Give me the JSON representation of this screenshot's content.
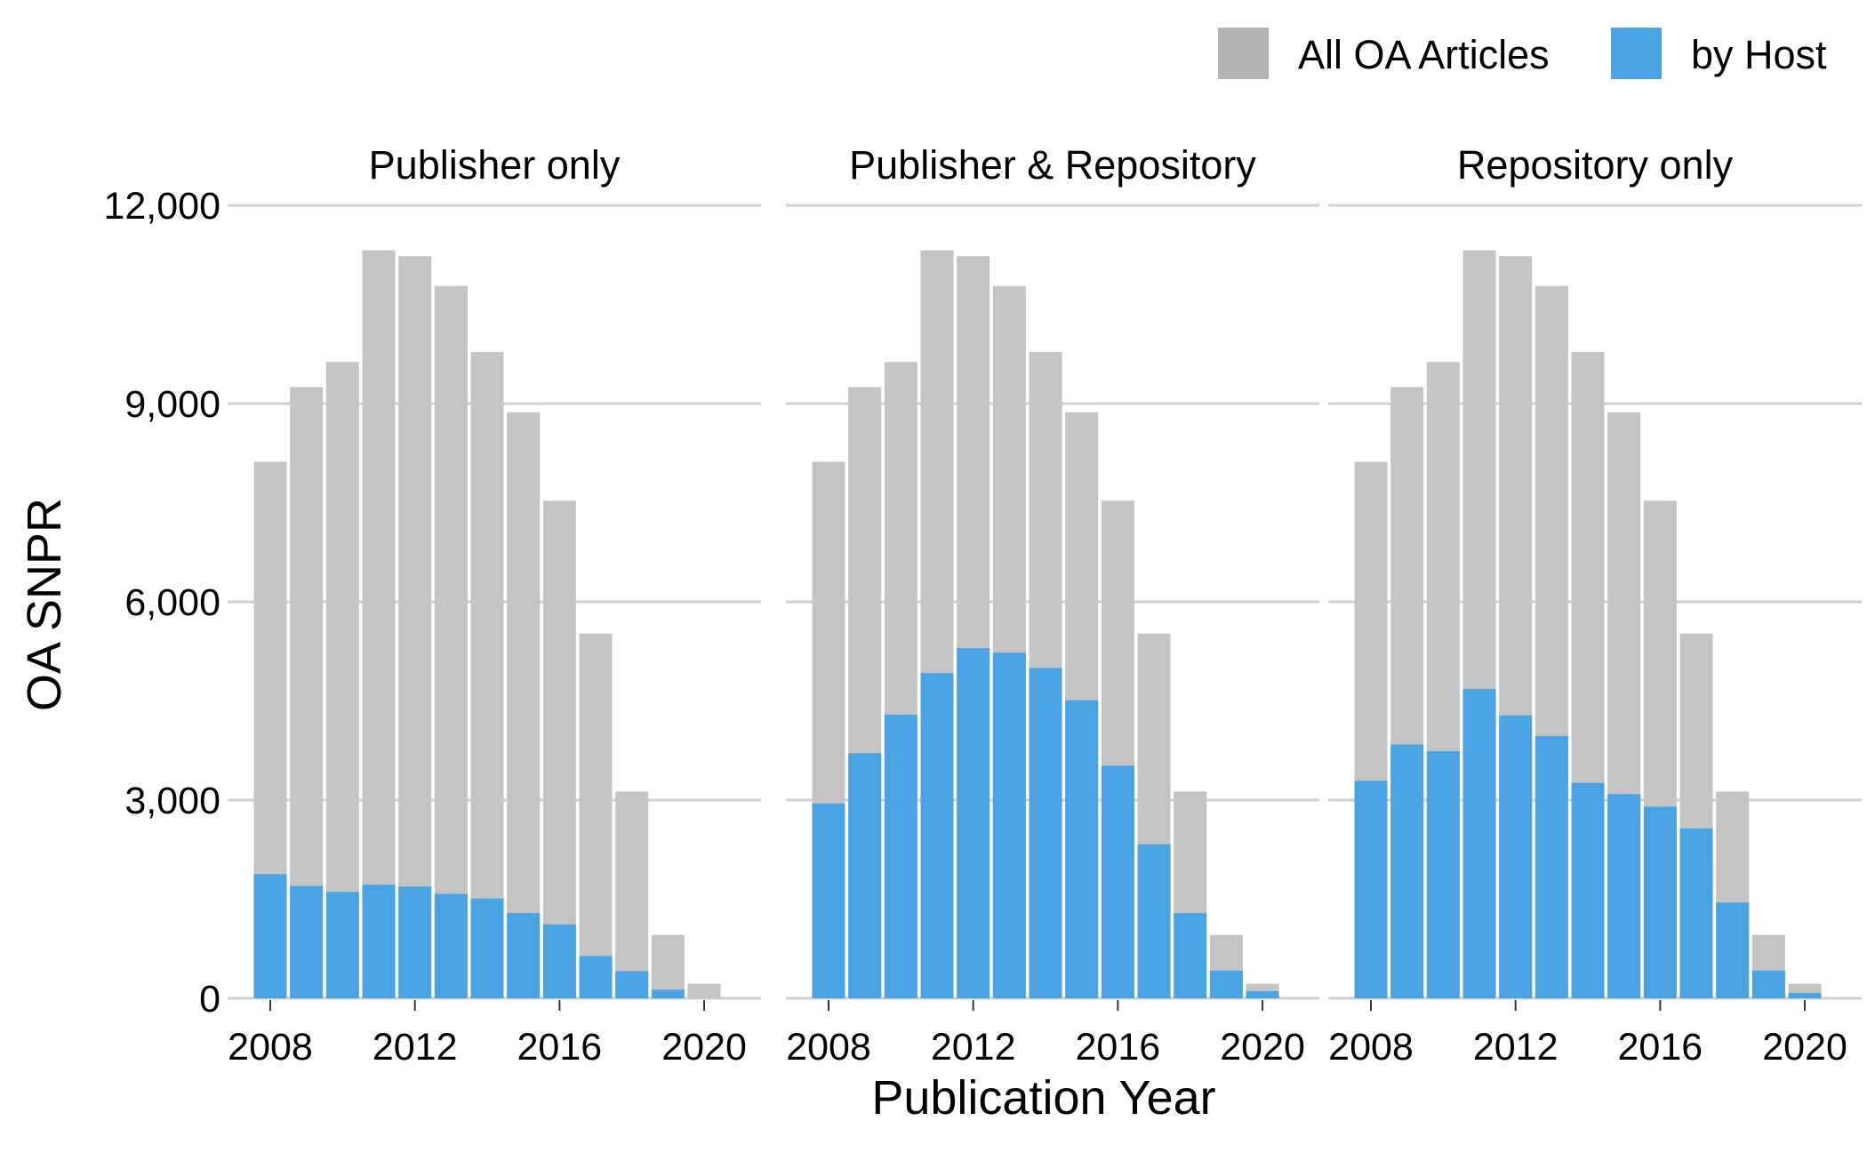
{
  "legend": {
    "items": [
      {
        "label": "All OA Articles",
        "color": "#b3b3b3"
      },
      {
        "label": "by Host",
        "color": "#4aa3e2"
      }
    ]
  },
  "colors": {
    "all_oa": "#c4c4c4",
    "by_host": "#4aa3e2",
    "gridline": "#d0d0d0"
  },
  "axes": {
    "ylabel": "OA SNPR",
    "xlabel": "Publication Year",
    "yticks": [
      0,
      3000,
      6000,
      9000,
      12000
    ],
    "ytick_labels": [
      "0",
      "3,000",
      "6,000",
      "9,000",
      "12,000"
    ],
    "xticks": [
      2008,
      2012,
      2016,
      2020
    ],
    "xtick_labels": [
      "2008",
      "2012",
      "2016",
      "2020"
    ]
  },
  "chart_data": {
    "type": "bar",
    "stacking": "overlay",
    "x": [
      2008,
      2009,
      2010,
      2011,
      2012,
      2013,
      2014,
      2015,
      2016,
      2017,
      2018,
      2019,
      2020
    ],
    "ylim": [
      0,
      12000
    ],
    "xlabel": "Publication Year",
    "ylabel": "OA SNPR",
    "grid": "horizontal",
    "legend_position": "top-right",
    "all_oa_articles": [
      8120,
      9250,
      9630,
      11320,
      11230,
      10780,
      9780,
      8870,
      7530,
      5520,
      3130,
      960,
      220
    ],
    "panels": [
      {
        "title": "Publisher only",
        "by_host": [
          1880,
          1700,
          1610,
          1720,
          1690,
          1580,
          1510,
          1290,
          1120,
          640,
          410,
          130,
          0
        ]
      },
      {
        "title": "Publisher & Repository",
        "by_host": [
          2950,
          3710,
          4290,
          4920,
          5300,
          5230,
          5000,
          4510,
          3520,
          2330,
          1290,
          420,
          110
        ]
      },
      {
        "title": "Repository only",
        "by_host": [
          3290,
          3840,
          3740,
          4680,
          4280,
          3970,
          3260,
          3090,
          2900,
          2570,
          1450,
          420,
          80
        ]
      }
    ]
  }
}
